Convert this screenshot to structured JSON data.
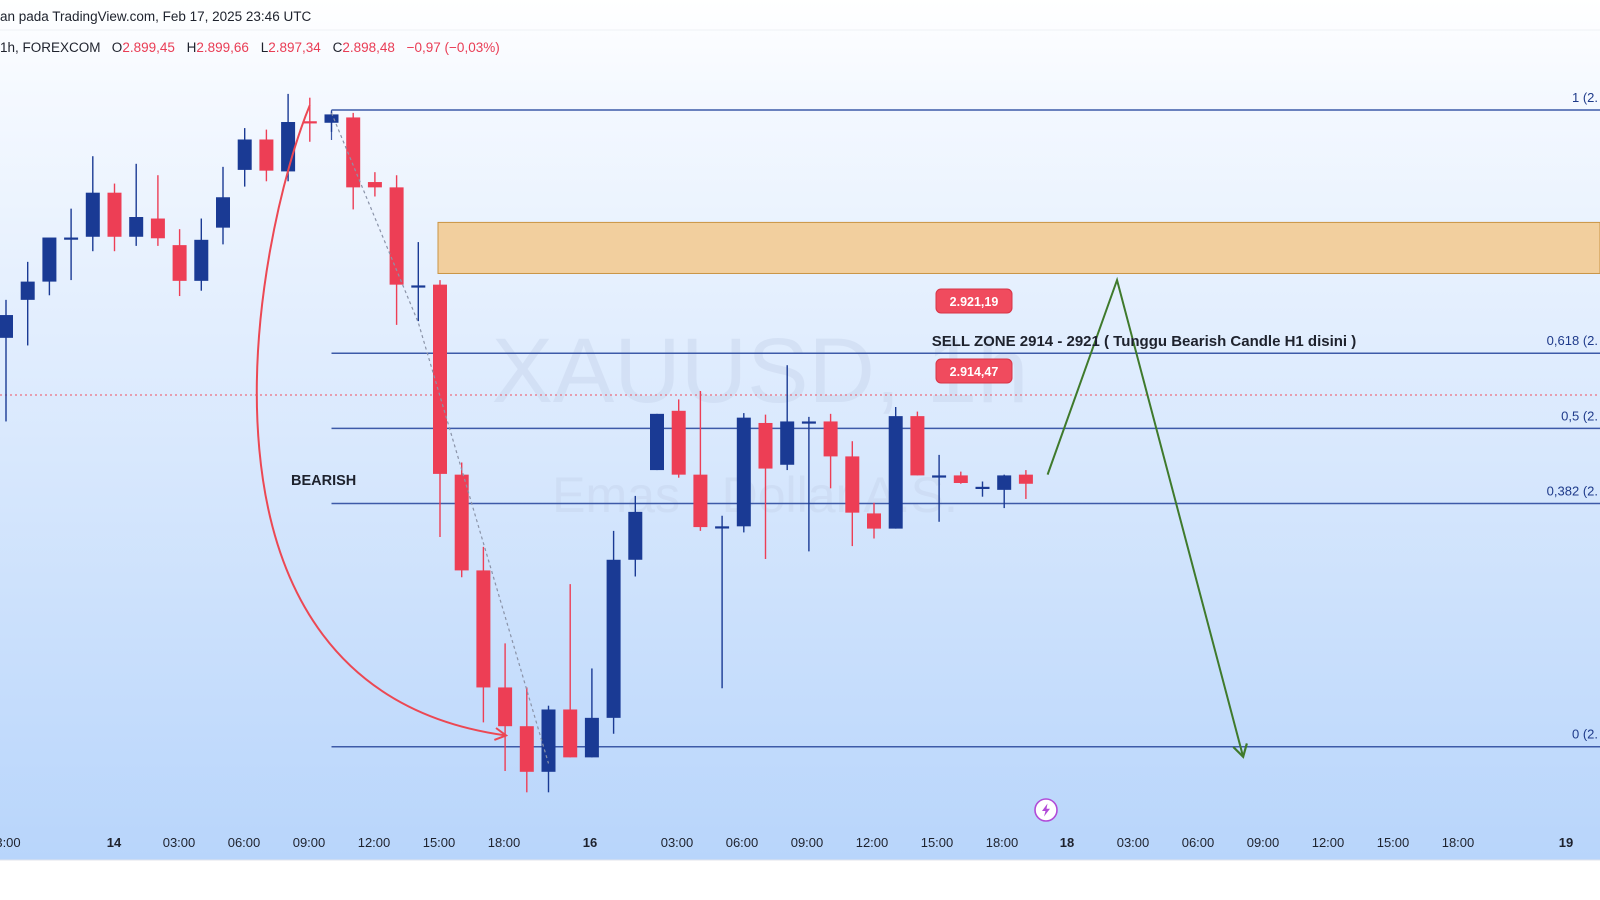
{
  "header": {
    "published": "an pada TradingView.com, Feb 17, 2025 23:46 UTC",
    "symbol": "1h, FOREXCOM",
    "open_label": "O",
    "open_value": "2.899,45",
    "high_label": "H",
    "high_value": "2.899,66",
    "low_label": "L",
    "low_value": "2.897,34",
    "close_label": "C",
    "close_value": "2.898,48",
    "change": "−0,97 (−0,03%)"
  },
  "watermark": {
    "symbol": "XAUUSD, 1h",
    "description": "Emas / Dollar A.S."
  },
  "colors": {
    "bull": "#1a3a94",
    "bear": "#ed3e55",
    "fib_line": "#3d5aa8",
    "zone_fill": "#f3c98d",
    "zone_border": "#c99444",
    "bearish_arrow": "#ec4853",
    "projection": "#3f7a2c",
    "price_badge": "#f04b5e",
    "bg_top": "#ffffff",
    "bg_bottom": "#b8d5fb"
  },
  "annotations": {
    "bearish_label": "BEARISH",
    "sell_zone_label": "SELL ZONE 2914 - 2921 ( Tunggu Bearish Candle H1 disini )",
    "zone_high_badge": "2.921,19",
    "zone_low_badge": "2.914,47"
  },
  "chart_data": {
    "type": "candlestick",
    "timeframe": "1h",
    "x_tick_labels": [
      "3:00",
      "14",
      "03:00",
      "06:00",
      "09:00",
      "12:00",
      "15:00",
      "18:00",
      "16",
      "03:00",
      "06:00",
      "09:00",
      "12:00",
      "15:00",
      "18:00",
      "18",
      "03:00",
      "06:00",
      "09:00",
      "12:00",
      "15:00",
      "18:00",
      "19"
    ],
    "fib_levels": [
      {
        "ratio": 1,
        "label": "1 (2."
      },
      {
        "ratio": 0.618,
        "label": "0,618 (2."
      },
      {
        "ratio": 0.5,
        "label": "0,5 (2."
      },
      {
        "ratio": 0.382,
        "label": "0,382 (2."
      },
      {
        "ratio": 0,
        "label": "0 (2."
      }
    ],
    "sell_zone": {
      "high": 2921.19,
      "low": 2914.47
    },
    "current_price": 2898.48,
    "candles": [
      {
        "o": 2906.0,
        "h": 2911.0,
        "l": 2895.0,
        "c": 2909.0
      },
      {
        "o": 2911.0,
        "h": 2916.0,
        "l": 2905.0,
        "c": 2913.4
      },
      {
        "o": 2913.4,
        "h": 2918.6,
        "l": 2911.6,
        "c": 2919.2
      },
      {
        "o": 2919.0,
        "h": 2923.0,
        "l": 2913.6,
        "c": 2919.2
      },
      {
        "o": 2919.3,
        "h": 2929.9,
        "l": 2917.4,
        "c": 2925.1
      },
      {
        "o": 2925.1,
        "h": 2926.3,
        "l": 2917.4,
        "c": 2919.3
      },
      {
        "o": 2919.3,
        "h": 2928.9,
        "l": 2918.1,
        "c": 2921.9
      },
      {
        "o": 2921.7,
        "h": 2927.4,
        "l": 2918.1,
        "c": 2919.1
      },
      {
        "o": 2918.2,
        "h": 2920.3,
        "l": 2911.5,
        "c": 2913.5
      },
      {
        "o": 2913.5,
        "h": 2921.7,
        "l": 2912.2,
        "c": 2918.9
      },
      {
        "o": 2920.5,
        "h": 2928.5,
        "l": 2918.3,
        "c": 2924.5
      },
      {
        "o": 2928.1,
        "h": 2933.6,
        "l": 2925.9,
        "c": 2932.1
      },
      {
        "o": 2932.1,
        "h": 2933.4,
        "l": 2926.6,
        "c": 2928.0
      },
      {
        "o": 2927.9,
        "h": 2938.1,
        "l": 2926.6,
        "c": 2934.4
      },
      {
        "o": 2934.5,
        "h": 2937.6,
        "l": 2931.8,
        "c": 2934.4
      },
      {
        "o": 2934.3,
        "h": 2935.8,
        "l": 2933.1,
        "c": 2935.4
      },
      {
        "o": 2935.0,
        "h": 2935.6,
        "l": 2922.9,
        "c": 2925.8
      },
      {
        "o": 2926.5,
        "h": 2927.8,
        "l": 2924.6,
        "c": 2925.8
      },
      {
        "o": 2925.8,
        "h": 2927.4,
        "l": 2907.7,
        "c": 2913.0
      },
      {
        "o": 2912.9,
        "h": 2918.6,
        "l": 2908.2,
        "c": 2912.9
      },
      {
        "o": 2913.0,
        "h": 2913.6,
        "l": 2879.8,
        "c": 2888.1
      },
      {
        "o": 2888.0,
        "h": 2889.6,
        "l": 2874.5,
        "c": 2875.4
      },
      {
        "o": 2875.4,
        "h": 2878.5,
        "l": 2855.4,
        "c": 2860.0
      },
      {
        "o": 2860.0,
        "h": 2865.8,
        "l": 2849.0,
        "c": 2854.9
      },
      {
        "o": 2854.9,
        "h": 2860.0,
        "l": 2846.2,
        "c": 2848.9
      },
      {
        "o": 2848.9,
        "h": 2857.6,
        "l": 2846.2,
        "c": 2857.1
      },
      {
        "o": 2857.1,
        "h": 2873.6,
        "l": 2850.8,
        "c": 2850.8
      },
      {
        "o": 2850.8,
        "h": 2862.5,
        "l": 2850.8,
        "c": 2856.0
      },
      {
        "o": 2856.0,
        "h": 2880.6,
        "l": 2853.9,
        "c": 2876.8
      },
      {
        "o": 2876.8,
        "h": 2885.2,
        "l": 2874.6,
        "c": 2883.1
      },
      {
        "o": 2888.6,
        "h": 2896.0,
        "l": 2888.6,
        "c": 2896.0
      },
      {
        "o": 2896.4,
        "h": 2897.9,
        "l": 2887.6,
        "c": 2888.0
      },
      {
        "o": 2888.0,
        "h": 2899.0,
        "l": 2880.6,
        "c": 2881.1
      },
      {
        "o": 2881.2,
        "h": 2882.6,
        "l": 2859.9,
        "c": 2881.2
      },
      {
        "o": 2881.2,
        "h": 2896.1,
        "l": 2880.4,
        "c": 2895.5
      },
      {
        "o": 2894.8,
        "h": 2895.9,
        "l": 2876.9,
        "c": 2888.8
      },
      {
        "o": 2889.3,
        "h": 2902.4,
        "l": 2888.6,
        "c": 2895.0
      },
      {
        "o": 2895.0,
        "h": 2895.6,
        "l": 2877.9,
        "c": 2895.0
      },
      {
        "o": 2895.0,
        "h": 2896.0,
        "l": 2886.2,
        "c": 2890.4
      },
      {
        "o": 2890.4,
        "h": 2892.4,
        "l": 2878.6,
        "c": 2883.0
      },
      {
        "o": 2882.9,
        "h": 2884.3,
        "l": 2879.6,
        "c": 2880.9
      },
      {
        "o": 2880.9,
        "h": 2896.9,
        "l": 2880.9,
        "c": 2895.7
      },
      {
        "o": 2895.7,
        "h": 2896.3,
        "l": 2887.9,
        "c": 2887.9
      },
      {
        "o": 2887.9,
        "h": 2890.6,
        "l": 2881.8,
        "c": 2887.9
      },
      {
        "o": 2887.9,
        "h": 2888.4,
        "l": 2886.8,
        "c": 2886.9
      },
      {
        "o": 2886.4,
        "h": 2887.1,
        "l": 2885.1,
        "c": 2886.4
      },
      {
        "o": 2886.0,
        "h": 2888.0,
        "l": 2883.6,
        "c": 2887.9
      },
      {
        "o": 2888.0,
        "h": 2888.6,
        "l": 2884.8,
        "c": 2886.8
      }
    ]
  }
}
